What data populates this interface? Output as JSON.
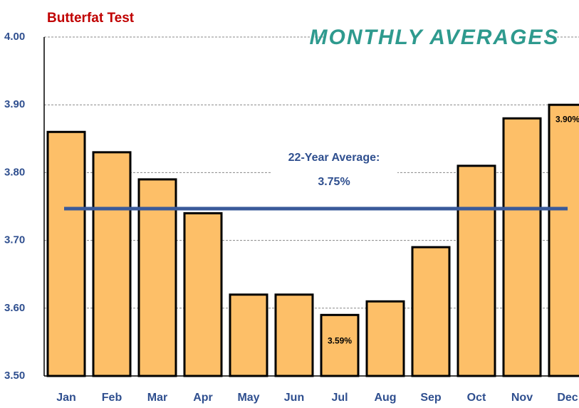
{
  "chart_data": {
    "type": "bar",
    "title": "Butterfat Test",
    "subtitle": "MONTHLY AVERAGES",
    "categories": [
      "Jan",
      "Feb",
      "Mar",
      "Apr",
      "May",
      "Jun",
      "Jul",
      "Aug",
      "Sep",
      "Oct",
      "Nov",
      "Dec"
    ],
    "values": [
      3.86,
      3.83,
      3.79,
      3.74,
      3.62,
      3.62,
      3.59,
      3.61,
      3.69,
      3.81,
      3.88,
      3.9
    ],
    "value_labels": [
      null,
      null,
      null,
      null,
      null,
      null,
      "3.59%",
      null,
      null,
      null,
      null,
      "3.90%"
    ],
    "color": "#fdbf68",
    "ylim": [
      3.5,
      4.0
    ],
    "yticks": [
      {
        "value": 3.5,
        "label": "3.50"
      },
      {
        "value": 3.6,
        "label": "3.60"
      },
      {
        "value": 3.7,
        "label": "3.70"
      },
      {
        "value": 3.8,
        "label": "3.80"
      },
      {
        "value": 3.9,
        "label": "3.90"
      },
      {
        "value": 4.0,
        "label": "4.00"
      }
    ],
    "grid": true,
    "reference_line": {
      "label": "22-Year Average:",
      "value": 3.75,
      "value_label": "3.75%",
      "color": "#3a5a9a"
    }
  }
}
